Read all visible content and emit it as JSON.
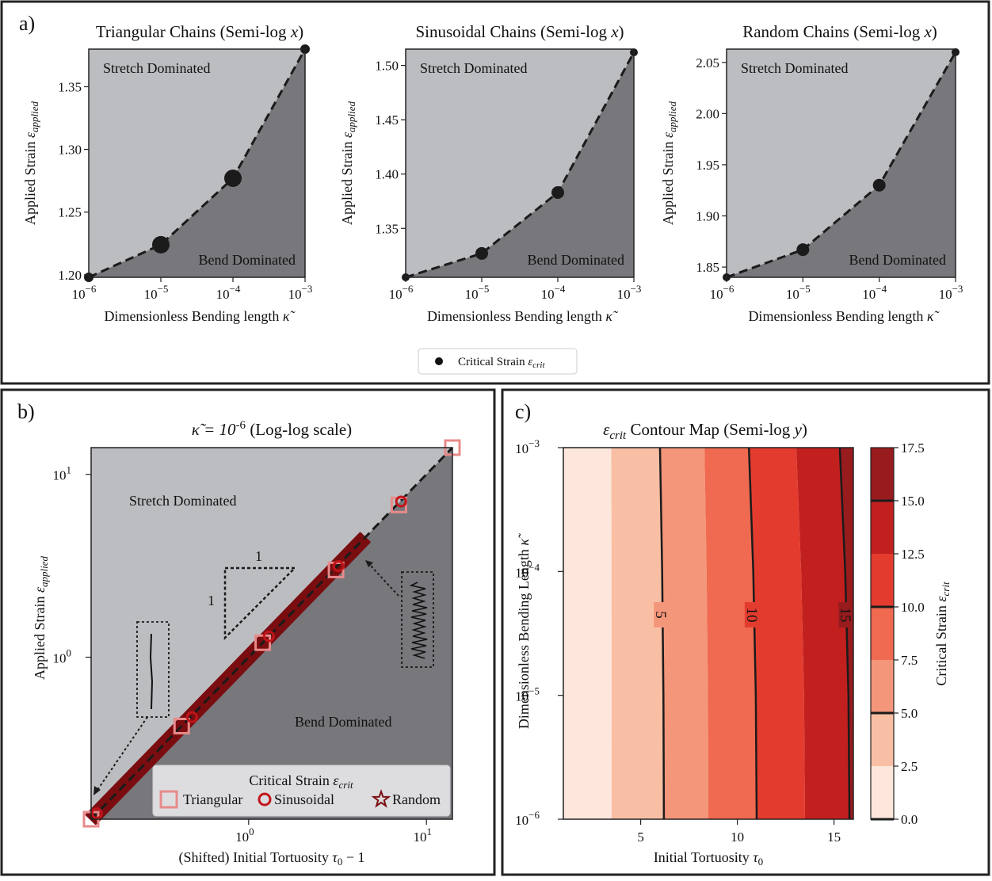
{
  "panel_labels": {
    "a": "a)",
    "b": "b)",
    "c": "c)"
  },
  "chart_data": [
    {
      "type": "line",
      "scale": "semilog-x",
      "color": "#222222",
      "title": "Triangular Chains (Semi-log x)",
      "title_text": "Triangular Chains (Semi-log",
      "title_var": "x",
      "xlabel": "Dimensionless Bending length",
      "xlabel_sym": "κ̃",
      "ylabel": "Applied Strain",
      "ylabel_sym": "ε",
      "ylabel_sub": "applied",
      "x": [
        1e-06,
        1e-05,
        0.0001,
        0.001
      ],
      "y": [
        1.198,
        1.224,
        1.277,
        1.38
      ],
      "xlim": [
        1e-06,
        0.001
      ],
      "ylim": [
        1.198,
        1.38
      ],
      "yticks": [
        "1.20",
        "1.25",
        "1.30",
        "1.35"
      ],
      "ytick_vals": [
        1.2,
        1.25,
        1.3,
        1.35
      ],
      "xticks": [
        "10",
        "10",
        "10",
        "10"
      ],
      "xtick_exps": [
        "−6",
        "−5",
        "−4",
        "−3"
      ],
      "regions": {
        "upper": "Stretch Dominated",
        "lower": "Bend Dominated"
      },
      "marker_size": "large"
    },
    {
      "type": "line",
      "scale": "semilog-x",
      "color": "#222222",
      "title": "Sinusoidal Chains (Semi-log x)",
      "title_text": "Sinusoidal Chains (Semi-log",
      "title_var": "x",
      "xlabel": "Dimensionless Bending length",
      "xlabel_sym": "κ̃",
      "ylabel": "Applied Strain",
      "ylabel_sym": "ε",
      "ylabel_sub": "applied",
      "x": [
        1e-06,
        1e-05,
        0.0001,
        0.001
      ],
      "y": [
        1.305,
        1.327,
        1.383,
        1.512
      ],
      "xlim": [
        1e-06,
        0.001
      ],
      "ylim": [
        1.305,
        1.515
      ],
      "yticks": [
        "1.35",
        "1.40",
        "1.45",
        "1.50"
      ],
      "ytick_vals": [
        1.35,
        1.4,
        1.45,
        1.5
      ],
      "xticks": [
        "10",
        "10",
        "10",
        "10"
      ],
      "xtick_exps": [
        "−6",
        "−5",
        "−4",
        "−3"
      ],
      "regions": {
        "upper": "Stretch Dominated",
        "lower": "Bend Dominated"
      },
      "marker_size": "small"
    },
    {
      "type": "line",
      "scale": "semilog-x",
      "color": "#222222",
      "title": "Random Chains (Semi-log x)",
      "title_text": "Random Chains (Semi-log",
      "title_var": "x",
      "xlabel": "Dimensionless Bending length",
      "xlabel_sym": "κ̃",
      "ylabel": "Applied Strain",
      "ylabel_sym": "ε",
      "ylabel_sub": "applied",
      "x": [
        1e-06,
        1e-05,
        0.0001,
        0.001
      ],
      "y": [
        1.84,
        1.867,
        1.93,
        2.06
      ],
      "xlim": [
        1e-06,
        0.001
      ],
      "ylim": [
        1.84,
        2.063
      ],
      "yticks": [
        "1.85",
        "1.90",
        "1.95",
        "2.00",
        "2.05"
      ],
      "ytick_vals": [
        1.85,
        1.9,
        1.95,
        2.0,
        2.05
      ],
      "xticks": [
        "10",
        "10",
        "10",
        "10"
      ],
      "xtick_exps": [
        "−6",
        "−5",
        "−4",
        "−3"
      ],
      "regions": {
        "upper": "Stretch Dominated",
        "lower": "Bend Dominated"
      },
      "marker_size": "small"
    },
    {
      "type": "scatter",
      "scale": "log-log",
      "title": "κ̃ = 10-6 (Log-log scale)",
      "title_sym": "κ̃ = 10",
      "title_exp": "-6",
      "title_rest": "(Log-log scale)",
      "xlabel": "(Shifted) Initial Tortuosity",
      "xlabel_sym": "τ",
      "xlabel_sub": "0",
      "xlabel_tail": "− 1",
      "ylabel": "Applied Strain",
      "ylabel_sym": "ε",
      "ylabel_sub": "applied",
      "xlim": [
        0.13,
        14
      ],
      "ylim": [
        0.13,
        14
      ],
      "xticks": [
        "10",
        "10"
      ],
      "xtick_exps": [
        "0",
        "1"
      ],
      "xtick_vals": [
        1,
        10
      ],
      "yticks": [
        "10",
        "10"
      ],
      "ytick_exps": [
        "0",
        "1"
      ],
      "ytick_vals": [
        1,
        10
      ],
      "regions": {
        "upper": "Stretch Dominated",
        "lower": "Bend Dominated"
      },
      "slope_triangle": {
        "run": "1",
        "rise": "1"
      },
      "series": [
        {
          "name": "Triangular",
          "marker": "square",
          "color": "#e88a8a",
          "x": [
            0.13,
            0.42,
            1.2,
            3.1,
            7.0,
            14.0
          ],
          "y": [
            0.13,
            0.42,
            1.2,
            3.0,
            6.8,
            14.0
          ]
        },
        {
          "name": "Sinusoidal",
          "marker": "circle",
          "color": "#c0151a",
          "x": [
            0.14,
            0.48,
            1.3,
            3.2,
            7.2
          ],
          "y": [
            0.14,
            0.47,
            1.3,
            3.15,
            7.1
          ]
        },
        {
          "name": "Random",
          "marker": "star",
          "color": "#7a0d10",
          "x_range": [
            0.13,
            4.5
          ],
          "y_range": [
            0.13,
            4.5
          ]
        }
      ],
      "legend": {
        "title": "Critical Strain",
        "title_sym": "ε",
        "title_sub": "crit",
        "placement": "lower-right"
      }
    },
    {
      "type": "heatmap",
      "subtype": "filled-contour",
      "scale": "semilog-y",
      "title": "εcrit Contour Map (Semi-log y)",
      "title_sym": "ε",
      "title_sub": "crit",
      "title_text": "Contour Map (Semi-log",
      "title_var": "y",
      "xlabel": "Initial Tortuosity",
      "xlabel_sym": "τ",
      "xlabel_sub": "0",
      "ylabel": "Dimensionless Bending Length",
      "ylabel_sym": "κ̃",
      "xlim": [
        1,
        16
      ],
      "ylim": [
        1e-06,
        0.001
      ],
      "xticks": [
        "5",
        "10",
        "15"
      ],
      "xtick_vals": [
        5,
        10,
        15
      ],
      "yticks": [
        "10",
        "10",
        "10",
        "10"
      ],
      "ytick_exps": [
        "−6",
        "−5",
        "−4",
        "−3"
      ],
      "levels": [
        0,
        2.5,
        5,
        7.5,
        10,
        12.5,
        15,
        17.5
      ],
      "level_colors": [
        "#fde7dc",
        "#f8bfa4",
        "#f4967a",
        "#ef6a50",
        "#e33c2f",
        "#c2201f",
        "#981b1e"
      ],
      "contour_lines": [
        {
          "value": 5,
          "label": "5"
        },
        {
          "value": 10,
          "label": "10"
        },
        {
          "value": 15,
          "label": "15"
        }
      ],
      "colorbar": {
        "label": "Critical Strain",
        "label_sym": "ε",
        "label_sub": "crit",
        "ticks": [
          "0.0",
          "2.5",
          "5.0",
          "7.5",
          "10.0",
          "12.5",
          "15.0",
          "17.5"
        ]
      }
    }
  ],
  "legend_a": {
    "label": "Critical Strain",
    "sym": "ε",
    "sub": "crit"
  }
}
